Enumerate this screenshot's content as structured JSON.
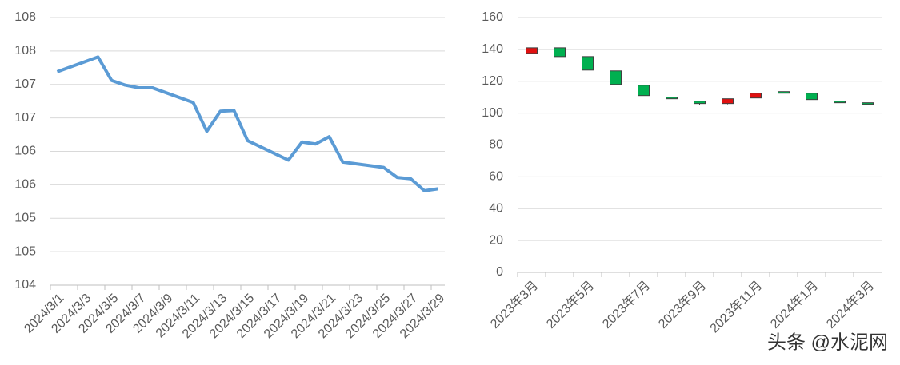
{
  "chart_data": [
    {
      "type": "line",
      "color": "#5b9bd5",
      "grid": true,
      "x": [
        "2024/3/1",
        "2024/3/4",
        "2024/3/5",
        "2024/3/6",
        "2024/3/7",
        "2024/3/8",
        "2024/3/11",
        "2024/3/12",
        "2024/3/13",
        "2024/3/14",
        "2024/3/15",
        "2024/3/18",
        "2024/3/19",
        "2024/3/20",
        "2024/3/21",
        "2024/3/22",
        "2024/3/25",
        "2024/3/26",
        "2024/3/27",
        "2024/3/28",
        "2024/3/29"
      ],
      "values": [
        107.19,
        107.41,
        107.06,
        106.99,
        106.95,
        106.95,
        106.73,
        106.3,
        106.6,
        106.61,
        106.16,
        105.87,
        106.14,
        106.11,
        106.22,
        105.84,
        105.76,
        105.61,
        105.59,
        105.41,
        105.44
      ],
      "xticks": [
        "2024/3/1",
        "2024/3/3",
        "2024/3/5",
        "2024/3/7",
        "2024/3/9",
        "2024/3/11",
        "2024/3/13",
        "2024/3/15",
        "2024/3/17",
        "2024/3/19",
        "2024/3/21",
        "2024/3/23",
        "2024/3/25",
        "2024/3/27",
        "2024/3/29"
      ],
      "ylim": [
        104,
        108
      ],
      "yticks": [
        104,
        {
          "value": 104.5,
          "label": "105"
        },
        105,
        {
          "value": 105.5,
          "label": "106"
        },
        106,
        {
          "value": 106.5,
          "label": "107"
        },
        107,
        {
          "value": 107.5,
          "label": "108"
        },
        108
      ]
    },
    {
      "type": "candlestick",
      "grid": true,
      "up_color": "#e01010",
      "down_color": "#00b050",
      "categories": [
        "2023年3月",
        null,
        "2023年5月",
        null,
        "2023年7月",
        null,
        "2023年9月",
        null,
        "2023年11月",
        null,
        "2024年1月",
        null,
        "2024年3月"
      ],
      "open": [
        137.5,
        141,
        135.5,
        126.5,
        117.5,
        110,
        107.5,
        106,
        109.5,
        113.5,
        112.5,
        107.5,
        106.5
      ],
      "high": [
        141,
        141,
        135.5,
        126.5,
        117.5,
        110,
        107.5,
        109,
        112.5,
        113.5,
        112.5,
        107.5,
        106.5
      ],
      "low": [
        137.5,
        135.5,
        127,
        118,
        111,
        109,
        105,
        105.5,
        109.5,
        112.5,
        108.5,
        106.5,
        105.5
      ],
      "close": [
        141,
        135.5,
        127,
        118,
        111,
        109,
        106,
        109,
        112.5,
        112.5,
        108.5,
        106.5,
        105.5
      ],
      "ylim": [
        0,
        160
      ],
      "yticks": [
        0,
        20,
        40,
        60,
        80,
        100,
        120,
        140,
        160
      ]
    }
  ],
  "watermark": "头条 @水泥网"
}
